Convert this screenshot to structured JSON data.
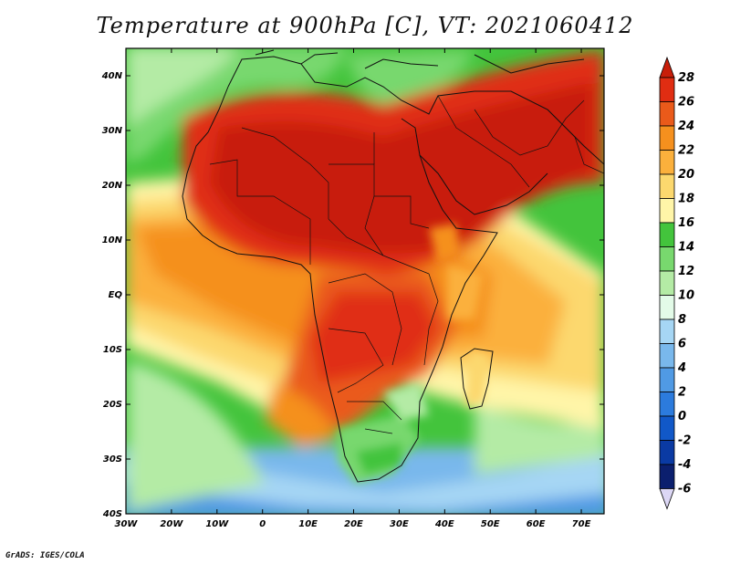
{
  "title": "Temperature at 900hPa [C], VT: 2021060412",
  "credit": "GrADS: IGES/COLA",
  "map": {
    "lon_range": [
      -30,
      75
    ],
    "lat_range": [
      -40,
      45
    ],
    "lon_labels": [
      "30W",
      "20W",
      "10W",
      "0",
      "10E",
      "20E",
      "30E",
      "40E",
      "50E",
      "60E",
      "70E"
    ],
    "lon_values": [
      -30,
      -20,
      -10,
      0,
      10,
      20,
      30,
      40,
      50,
      60,
      70
    ],
    "lat_labels": [
      "40S",
      "30S",
      "20S",
      "10S",
      "EQ",
      "10N",
      "20N",
      "30N",
      "40N"
    ],
    "lat_values": [
      -40,
      -30,
      -20,
      -10,
      0,
      10,
      20,
      30,
      40
    ]
  },
  "colorbar": {
    "labels": [
      "28",
      "26",
      "24",
      "22",
      "20",
      "18",
      "16",
      "14",
      "12",
      "10",
      "8",
      "6",
      "4",
      "2",
      "0",
      "-2",
      "-4",
      "-6"
    ],
    "colors": [
      "#c81e0a",
      "#e02d12",
      "#ea5a1a",
      "#f5901e",
      "#fbb03c",
      "#fcd86e",
      "#fff5a8",
      "#43c43c",
      "#78d86e",
      "#b4eba5",
      "#e3fbe8",
      "#a6d6f4",
      "#79b8ec",
      "#509ae4",
      "#2c7bdd",
      "#1158c8",
      "#0a3aa3",
      "#0b1f6e",
      "#dcd7f5"
    ]
  }
}
